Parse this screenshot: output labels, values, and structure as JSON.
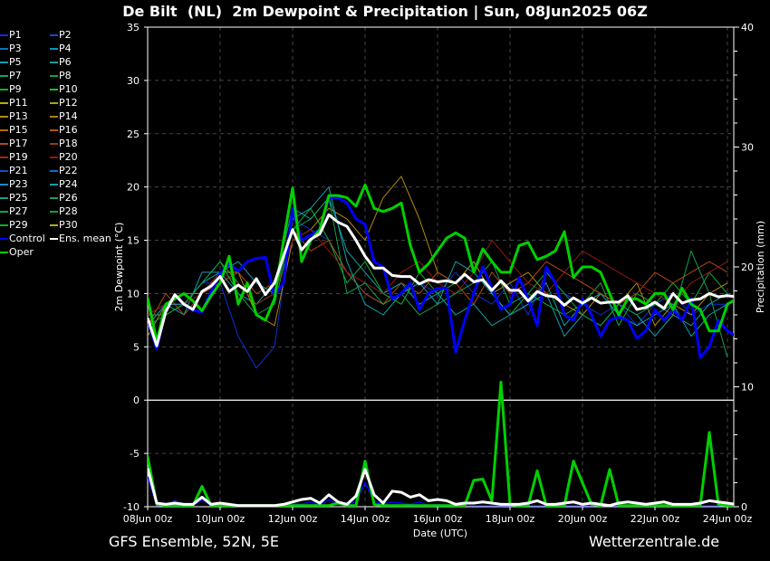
{
  "header": {
    "title": "De Bilt  (NL)  2m Dewpoint & Precipitation | Sun, 08Jun2025 06Z"
  },
  "footer": {
    "left": "GFS Ensemble, 52N, 5E",
    "right": "Wetterzentrale.de"
  },
  "chart_data": {
    "type": "line",
    "title": "De Bilt  (NL)  2m Dewpoint & Precipitation | Sun, 08Jun2025 06Z",
    "xlabel": "Date (UTC)",
    "ylabel": "2m Dewpoint (°C)",
    "y2label": "Precipitation (mm)",
    "ylim": [
      -10,
      35
    ],
    "y2lim": [
      0,
      40
    ],
    "xlim_hours": [
      0,
      390
    ],
    "step_hours": 6,
    "grid": true,
    "legend_position": "left-outside",
    "x_ticks": [
      "08Jun 00z",
      "10Jun 00z",
      "12Jun 00z",
      "14Jun 00z",
      "16Jun 00z",
      "18Jun 00z",
      "20Jun 00z",
      "22Jun 00z",
      "24Jun 00z"
    ],
    "y_ticks": [
      "-10",
      "-5",
      "0",
      "5",
      "10",
      "15",
      "20",
      "25",
      "30",
      "35"
    ],
    "y2_ticks": [
      "0",
      "10",
      "20",
      "30",
      "40"
    ],
    "legend": [
      "P1",
      "P2",
      "P3",
      "P4",
      "P5",
      "P6",
      "P7",
      "P8",
      "P9",
      "P10",
      "P11",
      "P12",
      "P13",
      "P14",
      "P15",
      "P16",
      "P17",
      "P18",
      "P19",
      "P20",
      "P21",
      "P22",
      "P23",
      "P24",
      "P25",
      "P26",
      "P27",
      "P28",
      "P29",
      "P30",
      "Control",
      "Ens. mean",
      "Oper"
    ],
    "member_colors": [
      "#1030d0",
      "#1050c0",
      "#1070c0",
      "#1090c0",
      "#10a0b0",
      "#10a090",
      "#10a070",
      "#10a050",
      "#10b030",
      "#20c020",
      "#b0b010",
      "#b0a010",
      "#b08a10",
      "#b07a10",
      "#b06a10",
      "#b05a10",
      "#b04a10",
      "#a03a10",
      "#a02a10",
      "#901a10",
      "#1050c0",
      "#1070c0",
      "#1090c0",
      "#10a0b0",
      "#10a090",
      "#10a070",
      "#10a050",
      "#10a040",
      "#10b020",
      "#b0b010"
    ],
    "control_color": "#0000ff",
    "mean_color": "#ffffff",
    "oper_color": "#00d000",
    "series": [
      {
        "name": "Ens. mean",
        "step_hours": 6,
        "dewpoint": [
          7.7,
          5.1,
          8.3,
          9.9,
          9.0,
          8.5,
          10.2,
          10.7,
          11.6,
          10.2,
          10.8,
          10.2,
          11.4,
          9.9,
          11.0,
          13.5,
          16.0,
          14.1,
          15.1,
          15.6,
          17.4,
          16.7,
          16.3,
          15.0,
          13.5,
          12.4,
          12.4,
          11.7,
          11.6,
          11.6,
          10.9,
          11.3,
          11.1,
          11.2,
          11.0,
          11.8,
          11.1,
          11.3,
          10.3,
          11.2,
          10.3,
          10.3,
          9.3,
          10.2,
          9.8,
          9.7,
          8.9,
          9.6,
          9.1,
          9.6,
          9.1,
          9.2,
          9.2,
          9.8,
          8.5,
          8.7,
          9.2,
          8.6,
          10.0,
          9.1,
          9.4,
          9.5,
          10.0,
          9.7,
          9.8,
          9.7
        ],
        "precip": [
          3.2,
          0.3,
          0.2,
          0.3,
          0.2,
          0.2,
          0.8,
          0.2,
          0.3,
          0.2,
          0.1,
          0.1,
          0.1,
          0.1,
          0.1,
          0.2,
          0.4,
          0.6,
          0.7,
          0.3,
          1.0,
          0.4,
          0.2,
          0.9,
          3.1,
          1.0,
          0.3,
          1.3,
          1.2,
          0.8,
          1.0,
          0.5,
          0.6,
          0.5,
          0.2,
          0.3,
          0.3,
          0.4,
          0.3,
          0.2,
          0.2,
          0.2,
          0.3,
          0.5,
          0.2,
          0.2,
          0.3,
          0.4,
          0.2,
          0.3,
          0.2,
          0.1,
          0.3,
          0.4,
          0.3,
          0.2,
          0.3,
          0.4,
          0.2,
          0.2,
          0.2,
          0.3,
          0.5,
          0.4,
          0.3,
          0.2
        ]
      },
      {
        "name": "Control",
        "step_hours": 6,
        "dewpoint": [
          7.5,
          4.8,
          8.5,
          9.8,
          9.0,
          8.4,
          8.3,
          10.2,
          11.9,
          12.8,
          12.1,
          13.0,
          13.3,
          13.4,
          9.8,
          11.0,
          18.0,
          15.0,
          15.5,
          16.0,
          19.0,
          19.0,
          18.5,
          17.0,
          16.5,
          13.0,
          12.5,
          9.5,
          10.0,
          11.0,
          8.5,
          10.0,
          10.5,
          10.5,
          4.5,
          7.5,
          10.0,
          12.5,
          10.5,
          8.5,
          9.0,
          11.5,
          9.5,
          7.0,
          12.5,
          11.0,
          8.0,
          7.5,
          9.5,
          8.0,
          6.0,
          7.5,
          7.8,
          7.5,
          5.8,
          6.5,
          8.5,
          7.5,
          8.5,
          7.5,
          9.5,
          4.0,
          5.0,
          7.5,
          6.5,
          6.0
        ],
        "precip": [
          2.5,
          0.1,
          0.1,
          0.5,
          0.1,
          0.1,
          0.6,
          0.1,
          0.1,
          0.1,
          0.1,
          0.1,
          0.1,
          0.1,
          0.1,
          0.1,
          0.3,
          0.2,
          0.4,
          0.1,
          0.6,
          0.2,
          0.1,
          0.5,
          2.0,
          0.5,
          0.2,
          0.4,
          0.3,
          0.2,
          0.4,
          0.1,
          0.2,
          0.1,
          0.1,
          0.1,
          0.1,
          0.1,
          0.1,
          0.1,
          0.1,
          0.1,
          0.1,
          0.1,
          0.1,
          0.1,
          0.1,
          0.1,
          0.1,
          0.1,
          0.1,
          0.1,
          0.1,
          0.1,
          0.1,
          0.1,
          0.1,
          0.1,
          0.1,
          0.1,
          0.1,
          0.1,
          0.1,
          0.1,
          0.1,
          0.1
        ]
      },
      {
        "name": "Oper",
        "step_hours": 6,
        "dewpoint": [
          9.6,
          5.5,
          9.0,
          9.5,
          10.0,
          9.3,
          8.4,
          9.8,
          11.0,
          13.5,
          9.0,
          11.0,
          8.0,
          7.5,
          9.5,
          15.0,
          19.9,
          13.0,
          15.0,
          16.0,
          19.2,
          19.2,
          19.0,
          18.2,
          20.2,
          18.0,
          17.7,
          18.0,
          18.5,
          14.5,
          12.0,
          12.8,
          14.0,
          15.2,
          15.7,
          15.2,
          12.0,
          14.2,
          13.0,
          12.0,
          12.0,
          14.5,
          14.8,
          13.2,
          13.5,
          14.0,
          15.8,
          11.5,
          12.5,
          12.5,
          12.0,
          10.0,
          8.0,
          9.5,
          9.5,
          9.0,
          10.0,
          10.0,
          8.5,
          10.5,
          9.0,
          8.5,
          6.5,
          6.5,
          9.0,
          9.5
        ],
        "precip": [
          4.2,
          0.2,
          0.1,
          0.1,
          0.1,
          0.1,
          1.7,
          0.1,
          0.1,
          0.1,
          0.1,
          0.1,
          0.1,
          0.1,
          0.1,
          0.1,
          0.1,
          0.1,
          0.1,
          0.1,
          0.1,
          0.3,
          0.1,
          0.1,
          3.8,
          0.2,
          0.1,
          0.1,
          0.1,
          0.1,
          0.1,
          0.1,
          0.1,
          0.1,
          0.1,
          0.1,
          2.2,
          2.3,
          0.5,
          10.4,
          0.2,
          0.1,
          0.1,
          3.0,
          0.1,
          0.1,
          0.1,
          3.8,
          2.0,
          0.2,
          0.1,
          3.1,
          0.1,
          0.1,
          0.1,
          0.1,
          0.1,
          0.1,
          0.1,
          0.1,
          0.1,
          0.1,
          6.2,
          0.2,
          0.1,
          0.1
        ]
      },
      {
        "name": "P1",
        "step_hours": 12,
        "dewpoint": [
          7,
          9,
          9,
          11,
          11,
          6,
          3,
          5,
          17,
          16,
          15,
          12,
          10,
          9,
          10,
          11,
          10,
          12,
          10,
          9,
          11,
          8,
          12,
          10,
          9,
          8,
          9,
          7,
          9,
          10,
          8,
          9,
          9
        ]
      },
      {
        "name": "P5",
        "step_hours": 12,
        "dewpoint": [
          8,
          9,
          8,
          12,
          12,
          10,
          9,
          11,
          18,
          17,
          19,
          14,
          12,
          10,
          11,
          9,
          10,
          8,
          9,
          7,
          8,
          9,
          10,
          6,
          8,
          7,
          9,
          8,
          6,
          8,
          7,
          9,
          10
        ]
      },
      {
        "name": "P9",
        "step_hours": 12,
        "dewpoint": [
          8,
          8,
          9,
          11,
          13,
          11,
          9,
          10,
          16,
          18,
          15,
          11,
          13,
          10,
          9,
          12,
          10,
          11,
          13,
          10,
          8,
          10,
          9,
          8,
          9,
          11,
          7,
          10,
          9,
          11,
          9,
          12,
          10
        ]
      },
      {
        "name": "P13",
        "step_hours": 12,
        "dewpoint": [
          6,
          9,
          10,
          10,
          12,
          12,
          8,
          7,
          15,
          16,
          18,
          17,
          15,
          19,
          21,
          17,
          12,
          11,
          13,
          10,
          11,
          12,
          10,
          9,
          8,
          10,
          9,
          11,
          7,
          9,
          8,
          10,
          11
        ]
      },
      {
        "name": "P17",
        "step_hours": 12,
        "dewpoint": [
          7,
          10,
          8,
          10,
          11,
          12,
          10,
          11,
          16,
          14,
          15,
          12,
          10,
          9,
          11,
          10,
          12,
          11,
          9,
          12,
          10,
          11,
          13,
          12,
          11,
          10,
          9,
          10,
          12,
          11,
          12,
          13,
          12
        ]
      },
      {
        "name": "P20",
        "step_hours": 12,
        "dewpoint": [
          8,
          9,
          9,
          10,
          12,
          11,
          9,
          10,
          15,
          16,
          14,
          12,
          11,
          10,
          12,
          13,
          11,
          10,
          12,
          15,
          13,
          11,
          10,
          12,
          14,
          13,
          12,
          11,
          10,
          9,
          11,
          12,
          13
        ]
      },
      {
        "name": "P24",
        "step_hours": 12,
        "dewpoint": [
          7,
          9,
          9,
          11,
          12,
          13,
          11,
          10,
          17,
          18,
          20,
          13,
          9,
          8,
          10,
          11,
          9,
          13,
          12,
          10,
          8,
          9,
          11,
          7,
          9,
          10,
          8,
          7,
          8,
          9,
          6,
          8,
          9
        ]
      },
      {
        "name": "P27",
        "step_hours": 12,
        "dewpoint": [
          7,
          8,
          9,
          11,
          13,
          10,
          8,
          9,
          16,
          17,
          19,
          10,
          11,
          9,
          10,
          8,
          9,
          10,
          11,
          13,
          9,
          10,
          12,
          10,
          8,
          7,
          9,
          8,
          9,
          8,
          14,
          10,
          4
        ]
      }
    ]
  }
}
